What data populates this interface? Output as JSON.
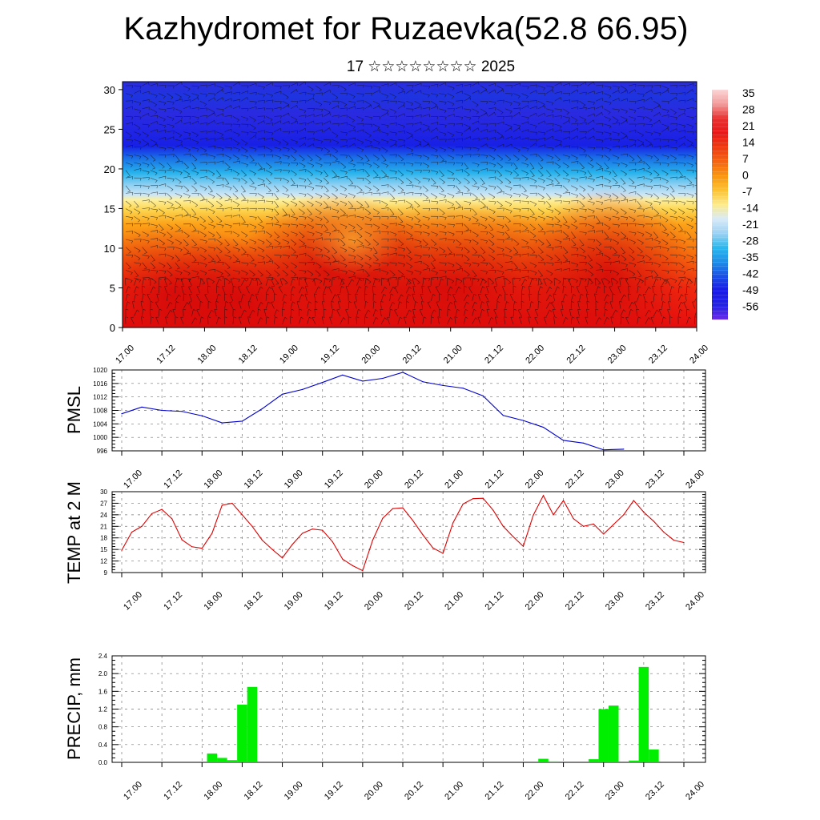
{
  "title": "Kazhydromet for Ruzaevka(52.8 66.95)",
  "subtitle": "17 ☆☆☆☆☆☆☆☆ 2025",
  "time_labels": [
    "17.00",
    "17.12",
    "18.00",
    "18.12",
    "19.00",
    "19.12",
    "20.00",
    "20.12",
    "21.00",
    "21.12",
    "22.00",
    "22.12",
    "23.00",
    "23.12",
    "24.00"
  ],
  "chart_data": [
    {
      "type": "heatmap",
      "name": "cross-section",
      "title": "",
      "ylabel": "",
      "ylim": [
        0,
        31
      ],
      "yticks": [
        0,
        5,
        10,
        15,
        20,
        25,
        30
      ],
      "x_range": [
        0,
        168
      ],
      "colorbar": {
        "labels": [
          "35",
          "28",
          "21",
          "14",
          "7",
          "0",
          "-7",
          "-14",
          "-21",
          "-28",
          "-35",
          "-42",
          "-49",
          "-56"
        ],
        "stops": [
          "#fbd5d5",
          "#f29a9a",
          "#e83030",
          "#e81818",
          "#ee3a10",
          "#f56410",
          "#fa9610",
          "#fcc230",
          "#fdeb8c",
          "#d8eaf8",
          "#9dd2f3",
          "#2ab8ee",
          "#1d8ee8",
          "#1a4fe5",
          "#1818e8",
          "#2323e3",
          "#6a28e8"
        ],
        "legend_placement": "right"
      },
      "wind_barbs": true
    },
    {
      "type": "line",
      "name": "pmsl",
      "ylabel": "PMSL",
      "ylim": [
        996,
        1020
      ],
      "yticks": [
        996,
        1000,
        1004,
        1008,
        1012,
        1016,
        1020
      ],
      "color": "#0000cc",
      "x": [
        0,
        6,
        12,
        18,
        24,
        30,
        36,
        42,
        48,
        54,
        60,
        66,
        72,
        78,
        84,
        90,
        96,
        102,
        108,
        114,
        120,
        126,
        132,
        138,
        144,
        150,
        156,
        162
      ],
      "values": [
        1007,
        1009,
        1008,
        1007.7,
        1006.4,
        1004.3,
        1004.8,
        1008.5,
        1012.8,
        1014.2,
        1016.3,
        1018.5,
        1016.7,
        1017.5,
        1019.3,
        1016.5,
        1015.4,
        1014.6,
        1012.3,
        1006.5,
        1005.0,
        1003.0,
        999.1,
        998.3,
        996.3,
        996.5,
        null,
        null
      ]
    },
    {
      "type": "line",
      "name": "temp2m",
      "ylabel": "TEMP at 2 M",
      "ylim": [
        9,
        30
      ],
      "yticks": [
        9,
        12,
        15,
        18,
        21,
        24,
        27,
        30
      ],
      "color": "#dd0000",
      "x": [
        0,
        3,
        6,
        9,
        12,
        15,
        18,
        21,
        24,
        27,
        30,
        33,
        36,
        39,
        42,
        45,
        48,
        51,
        54,
        57,
        60,
        63,
        66,
        69,
        72,
        75,
        78,
        81,
        84,
        87,
        90,
        93,
        96,
        99,
        102,
        105,
        108,
        111,
        114,
        117,
        120,
        123,
        126,
        129,
        132,
        135,
        138,
        141,
        144,
        147,
        150,
        153,
        156,
        159,
        162,
        165,
        168
      ],
      "values": [
        14.8,
        19.5,
        21,
        24.3,
        25.4,
        23,
        17.5,
        15.7,
        15.3,
        19.2,
        26.5,
        27,
        24,
        21,
        17.4,
        15,
        12.8,
        16.3,
        19.2,
        20.3,
        20,
        17,
        12.5,
        10.8,
        9.5,
        17.4,
        23.1,
        25.6,
        25.8,
        22.5,
        18.8,
        15.4,
        14,
        21.9,
        26.8,
        28.2,
        28.3,
        25.2,
        21,
        18.3,
        15.8,
        23.9,
        29,
        24,
        27.7,
        23,
        21,
        21.6,
        19,
        21.5,
        24,
        27.7,
        24.7,
        22.3,
        19.5,
        17.4,
        16.8
      ]
    },
    {
      "type": "bar",
      "name": "precip",
      "ylabel": "PRECIP, mm",
      "ylim": [
        0,
        2.4
      ],
      "yticks": [
        "0.0",
        "0.4",
        "0.8",
        "1.2",
        "1.6",
        "2.0",
        "2.4"
      ],
      "color": "#00ee00",
      "bar_width_hours": 3,
      "x": [
        27,
        30,
        33,
        36,
        39,
        126,
        129,
        141,
        144,
        147,
        153,
        156,
        159
      ],
      "values": [
        0.2,
        0.1,
        0.05,
        1.3,
        1.7,
        0.08,
        0.02,
        0.07,
        1.2,
        1.28,
        0.04,
        2.15,
        0.29
      ]
    }
  ]
}
